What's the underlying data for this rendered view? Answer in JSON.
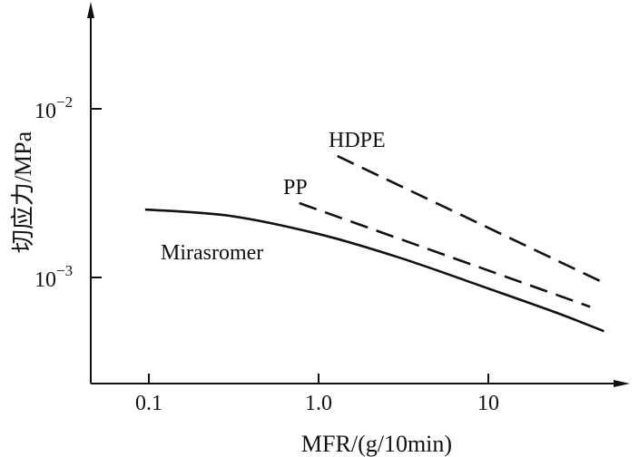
{
  "chart_data": {
    "type": "line",
    "title": "",
    "xlabel": "MFR/(g/10min)",
    "ylabel": "切应力/MPa",
    "xscale": "log",
    "yscale": "log",
    "xlim": [
      0.045,
      65
    ],
    "ylim": [
      0.00023,
      0.042
    ],
    "grid": false,
    "x_ticks": [
      {
        "value": 0.1,
        "label": "0.1"
      },
      {
        "value": 1,
        "label": "1.0"
      },
      {
        "value": 10,
        "label": "10"
      }
    ],
    "y_ticks": [
      {
        "value": 0.01,
        "base": "10",
        "exp": "−2"
      },
      {
        "value": 0.001,
        "base": "10",
        "exp": "−3"
      }
    ],
    "series": [
      {
        "name": "Mirasromer",
        "style": "solid",
        "x": [
          0.095,
          0.3,
          1.0,
          3.0,
          10,
          25,
          48
        ],
        "y": [
          0.00253,
          0.00232,
          0.00181,
          0.00131,
          0.00086,
          0.00062,
          0.00048
        ]
      },
      {
        "name": "PP",
        "style": "dashed",
        "x": [
          0.77,
          39.8
        ],
        "y": [
          0.00276,
          0.00067
        ]
      },
      {
        "name": "HDPE",
        "style": "dashed",
        "x": [
          1.29,
          49
        ],
        "y": [
          0.00525,
          0.00092
        ]
      }
    ]
  }
}
